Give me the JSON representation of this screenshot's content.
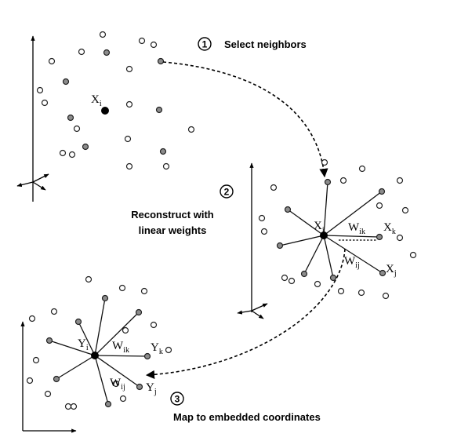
{
  "steps": [
    {
      "number": "1",
      "label": "Select neighbors"
    },
    {
      "number": "2",
      "label_line1": "Reconstruct with",
      "label_line2": "linear weights"
    },
    {
      "number": "3",
      "label": "Map to embedded coordinates"
    }
  ],
  "labels": {
    "xi": {
      "main": "X",
      "sub": "i"
    },
    "xi2": {
      "main": "X",
      "sub": "i"
    },
    "xk": {
      "main": "X",
      "sub": "k"
    },
    "xj": {
      "main": "X",
      "sub": "j"
    },
    "wik": {
      "main": "W",
      "sub": "ik"
    },
    "wij": {
      "main": "W",
      "sub": "ij"
    },
    "yi": {
      "main": "Y",
      "sub": "i"
    },
    "yk": {
      "main": "Y",
      "sub": "k"
    },
    "yj": {
      "main": "Y",
      "sub": "j"
    },
    "wik2": {
      "main": "W",
      "sub": "ik"
    },
    "wij2": {
      "main": "W",
      "sub": "ij"
    }
  }
}
